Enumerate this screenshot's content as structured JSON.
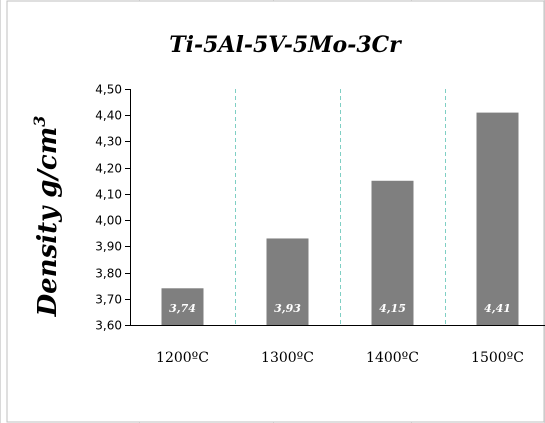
{
  "chart_data": {
    "type": "bar",
    "title": "Ti-5Al-5V-5Mo-3Cr",
    "ylabel_text": "Density g/cm",
    "ylabel_superscript": "3",
    "xlabel": "",
    "categories": [
      "1200ºC",
      "1300ºC",
      "1400ºC",
      "1500ºC"
    ],
    "values": [
      3.74,
      3.93,
      4.15,
      4.41
    ],
    "data_labels": [
      "3,74",
      "3,93",
      "4,15",
      "4,41"
    ],
    "ylim": [
      3.6,
      4.5
    ],
    "yticks": [
      3.6,
      3.7,
      3.8,
      3.9,
      4.0,
      4.1,
      4.2,
      4.3,
      4.4,
      4.5
    ],
    "ytick_labels": [
      "3,60",
      "3,70",
      "3,80",
      "3,90",
      "4,00",
      "4,10",
      "4,20",
      "4,30",
      "4,40",
      "4,50"
    ],
    "grid": "vertical dashed separators between categories",
    "legend": "none",
    "colors": {
      "bar": "#7f7f7f",
      "data_label": "#ffffff",
      "separator": "#7fcfc4",
      "axis": "#000000",
      "frame": "#bfbfbf",
      "sheet_grid": "#d9d9d9"
    }
  }
}
